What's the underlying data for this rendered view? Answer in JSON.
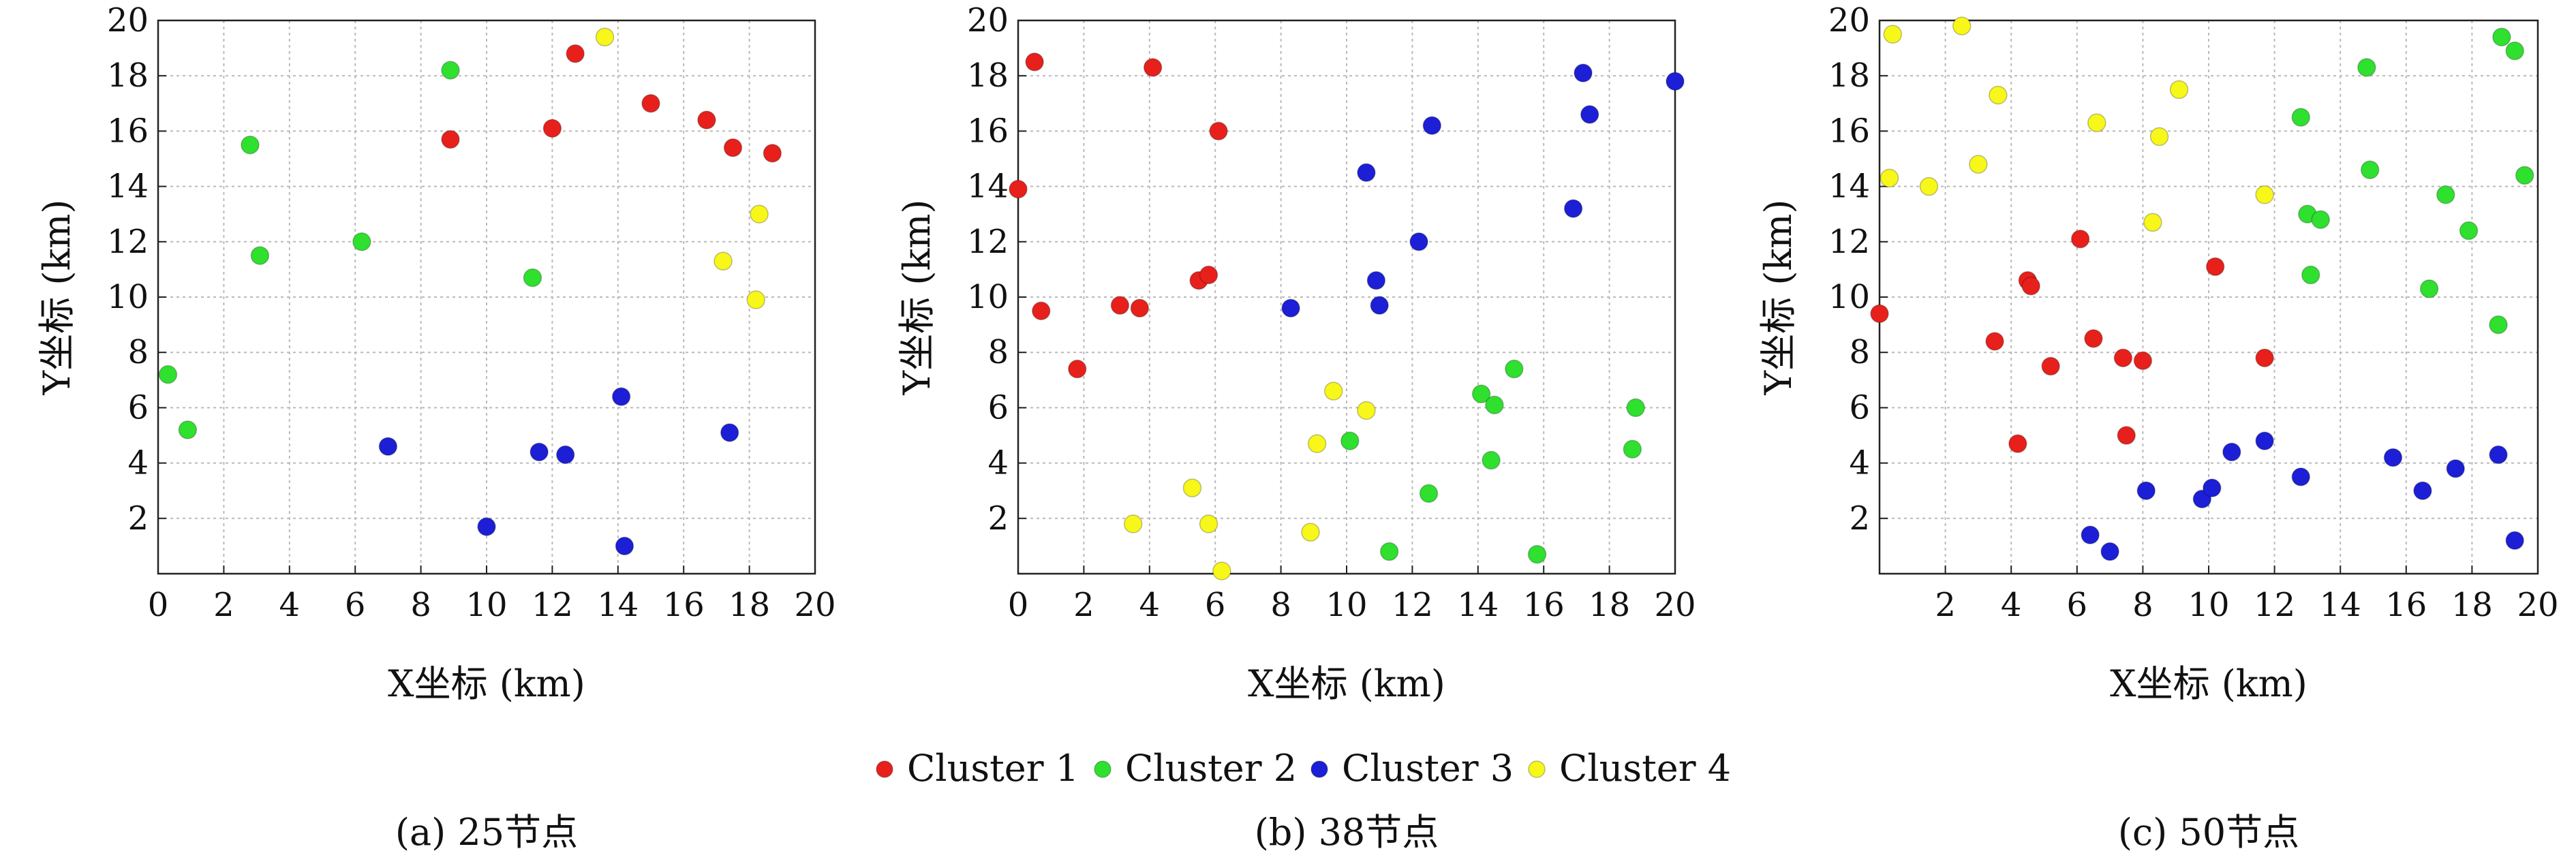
{
  "legend": {
    "items": [
      {
        "label": "Cluster 1",
        "color": "#e8201c"
      },
      {
        "label": "Cluster 2",
        "color": "#2fe02f"
      },
      {
        "label": "Cluster 3",
        "color": "#1c1fd6"
      },
      {
        "label": "Cluster 4",
        "color": "#f7f71a"
      }
    ]
  },
  "chart_data": [
    {
      "type": "scatter",
      "caption": "(a) 25节点",
      "xlabel": "X坐标 (km)",
      "ylabel": "Y坐标 (km)",
      "xlim": [
        0,
        20
      ],
      "ylim": [
        0,
        20
      ],
      "xticks": [
        0,
        2,
        4,
        6,
        8,
        10,
        12,
        14,
        16,
        18,
        20
      ],
      "yticks": [
        2,
        4,
        6,
        8,
        10,
        12,
        14,
        16,
        18,
        20
      ],
      "grid": true,
      "series": [
        {
          "name": "Cluster 1",
          "points": [
            [
              8.9,
              15.7
            ],
            [
              12.0,
              16.1
            ],
            [
              12.7,
              18.8
            ],
            [
              15.0,
              17.0
            ],
            [
              16.7,
              16.4
            ],
            [
              17.5,
              15.4
            ],
            [
              18.7,
              15.2
            ]
          ]
        },
        {
          "name": "Cluster 2",
          "points": [
            [
              0.3,
              7.2
            ],
            [
              0.9,
              5.2
            ],
            [
              2.8,
              15.5
            ],
            [
              3.1,
              11.5
            ],
            [
              6.2,
              12.0
            ],
            [
              8.9,
              18.2
            ],
            [
              11.4,
              10.7
            ]
          ]
        },
        {
          "name": "Cluster 3",
          "points": [
            [
              7.0,
              4.6
            ],
            [
              10.0,
              1.7
            ],
            [
              11.6,
              4.4
            ],
            [
              12.4,
              4.3
            ],
            [
              14.1,
              6.4
            ],
            [
              14.2,
              1.0
            ],
            [
              17.4,
              5.1
            ]
          ]
        },
        {
          "name": "Cluster 4",
          "points": [
            [
              13.6,
              19.4
            ],
            [
              17.2,
              11.3
            ],
            [
              18.3,
              13.0
            ],
            [
              18.2,
              9.9
            ]
          ]
        }
      ]
    },
    {
      "type": "scatter",
      "caption": "(b) 38节点",
      "xlabel": "X坐标 (km)",
      "ylabel": "Y坐标 (km)",
      "xlim": [
        0,
        20
      ],
      "ylim": [
        0,
        20
      ],
      "xticks": [
        0,
        2,
        4,
        6,
        8,
        10,
        12,
        14,
        16,
        18,
        20
      ],
      "yticks": [
        2,
        4,
        6,
        8,
        10,
        12,
        14,
        16,
        18,
        20
      ],
      "grid": true,
      "series": [
        {
          "name": "Cluster 1",
          "points": [
            [
              0.5,
              18.5
            ],
            [
              4.1,
              18.3
            ],
            [
              6.1,
              16.0
            ],
            [
              0.0,
              13.9
            ],
            [
              0.7,
              9.5
            ],
            [
              1.8,
              7.4
            ],
            [
              3.1,
              9.7
            ],
            [
              3.7,
              9.6
            ],
            [
              5.5,
              10.6
            ],
            [
              5.8,
              10.8
            ]
          ]
        },
        {
          "name": "Cluster 2",
          "points": [
            [
              14.1,
              6.5
            ],
            [
              15.1,
              7.4
            ],
            [
              14.5,
              6.1
            ],
            [
              18.8,
              6.0
            ],
            [
              10.1,
              4.8
            ],
            [
              14.4,
              4.1
            ],
            [
              18.7,
              4.5
            ],
            [
              12.5,
              2.9
            ],
            [
              11.3,
              0.8
            ],
            [
              15.8,
              0.7
            ]
          ]
        },
        {
          "name": "Cluster 3",
          "points": [
            [
              17.2,
              18.1
            ],
            [
              20.0,
              17.8
            ],
            [
              17.4,
              16.6
            ],
            [
              12.6,
              16.2
            ],
            [
              10.6,
              14.5
            ],
            [
              16.9,
              13.2
            ],
            [
              12.2,
              12.0
            ],
            [
              10.9,
              10.6
            ],
            [
              11.0,
              9.7
            ],
            [
              8.3,
              9.6
            ]
          ]
        },
        {
          "name": "Cluster 4",
          "points": [
            [
              9.6,
              6.6
            ],
            [
              10.6,
              5.9
            ],
            [
              9.1,
              4.7
            ],
            [
              5.3,
              3.1
            ],
            [
              3.5,
              1.8
            ],
            [
              5.8,
              1.8
            ],
            [
              8.9,
              1.5
            ],
            [
              6.2,
              0.1
            ]
          ]
        }
      ]
    },
    {
      "type": "scatter",
      "caption": "(c) 50节点",
      "xlabel": "X坐标 (km)",
      "ylabel": "Y坐标 (km)",
      "xlim": [
        0,
        20
      ],
      "ylim": [
        0,
        20
      ],
      "xticks": [
        2,
        4,
        6,
        8,
        10,
        12,
        14,
        16,
        18,
        20
      ],
      "yticks": [
        2,
        4,
        6,
        8,
        10,
        12,
        14,
        16,
        18,
        20
      ],
      "grid": true,
      "series": [
        {
          "name": "Cluster 1",
          "points": [
            [
              0.0,
              9.4
            ],
            [
              3.5,
              8.4
            ],
            [
              4.5,
              10.6
            ],
            [
              4.6,
              10.4
            ],
            [
              5.2,
              7.5
            ],
            [
              6.1,
              12.1
            ],
            [
              6.5,
              8.5
            ],
            [
              7.4,
              7.8
            ],
            [
              8.0,
              7.7
            ],
            [
              10.2,
              11.1
            ],
            [
              11.7,
              7.8
            ],
            [
              4.2,
              4.7
            ],
            [
              7.5,
              5.0
            ]
          ]
        },
        {
          "name": "Cluster 2",
          "points": [
            [
              12.8,
              16.5
            ],
            [
              14.8,
              18.3
            ],
            [
              14.9,
              14.6
            ],
            [
              13.0,
              13.0
            ],
            [
              13.4,
              12.8
            ],
            [
              13.1,
              10.8
            ],
            [
              17.2,
              13.7
            ],
            [
              17.9,
              12.4
            ],
            [
              16.7,
              10.3
            ],
            [
              18.8,
              9.0
            ],
            [
              18.9,
              19.4
            ],
            [
              19.3,
              18.9
            ],
            [
              19.6,
              14.4
            ]
          ]
        },
        {
          "name": "Cluster 3",
          "points": [
            [
              6.4,
              1.4
            ],
            [
              7.0,
              0.8
            ],
            [
              8.1,
              3.0
            ],
            [
              9.8,
              2.7
            ],
            [
              10.1,
              3.1
            ],
            [
              10.7,
              4.4
            ],
            [
              11.7,
              4.8
            ],
            [
              12.8,
              3.5
            ],
            [
              15.6,
              4.2
            ],
            [
              16.5,
              3.0
            ],
            [
              17.5,
              3.8
            ],
            [
              18.8,
              4.3
            ],
            [
              19.3,
              1.2
            ]
          ]
        },
        {
          "name": "Cluster 4",
          "points": [
            [
              0.4,
              19.5
            ],
            [
              2.5,
              19.8
            ],
            [
              0.3,
              14.3
            ],
            [
              1.5,
              14.0
            ],
            [
              3.0,
              14.8
            ],
            [
              3.6,
              17.3
            ],
            [
              6.6,
              16.3
            ],
            [
              8.5,
              15.8
            ],
            [
              9.1,
              17.5
            ],
            [
              8.3,
              12.7
            ],
            [
              11.7,
              13.7
            ]
          ]
        }
      ]
    }
  ]
}
